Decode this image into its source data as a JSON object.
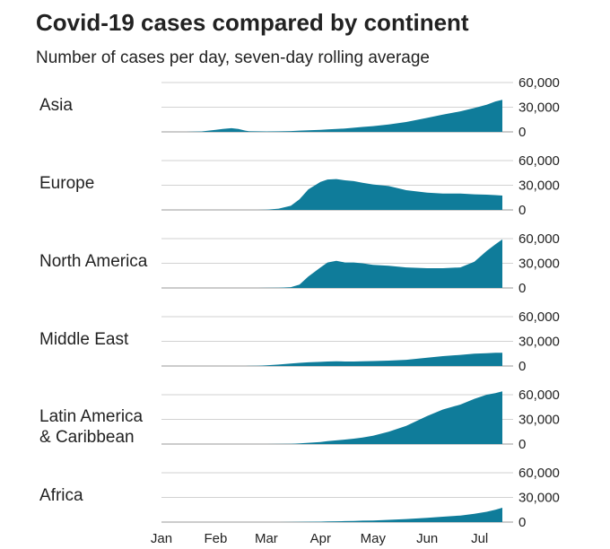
{
  "title": "Covid-19 cases compared by continent",
  "subtitle": "Number of cases per day, seven-day rolling average",
  "chart_data": {
    "type": "area",
    "x_ticks": [
      "Jan",
      "Feb",
      "Mar",
      "Apr",
      "May",
      "Jun",
      "Jul"
    ],
    "y_ticks": [
      "60,000",
      "30,000",
      "0"
    ],
    "ylim": [
      0,
      60000
    ],
    "grid": true,
    "fill_color": "#0f7c9a",
    "x": [
      "2020-01-01",
      "2020-01-15",
      "2020-01-24",
      "2020-02-01",
      "2020-02-05",
      "2020-02-10",
      "2020-02-14",
      "2020-02-18",
      "2020-02-20",
      "2020-02-25",
      "2020-03-01",
      "2020-03-08",
      "2020-03-15",
      "2020-03-20",
      "2020-03-25",
      "2020-04-01",
      "2020-04-05",
      "2020-04-10",
      "2020-04-15",
      "2020-04-20",
      "2020-04-25",
      "2020-05-01",
      "2020-05-10",
      "2020-05-20",
      "2020-06-01",
      "2020-06-10",
      "2020-06-20",
      "2020-06-28",
      "2020-07-05",
      "2020-07-10",
      "2020-07-14"
    ],
    "series": [
      {
        "name": "Asia",
        "values": [
          0,
          0,
          500,
          2500,
          3500,
          4500,
          3500,
          1500,
          800,
          600,
          500,
          700,
          1000,
          1500,
          2000,
          2500,
          3000,
          3500,
          4000,
          5000,
          6000,
          7000,
          9000,
          12000,
          17000,
          21000,
          25000,
          29000,
          33000,
          37000,
          39000
        ]
      },
      {
        "name": "Europe",
        "values": [
          0,
          0,
          0,
          0,
          0,
          0,
          0,
          0,
          0,
          0,
          300,
          1500,
          5000,
          13000,
          25000,
          34000,
          37000,
          37500,
          36000,
          35000,
          33000,
          31000,
          29000,
          24000,
          21000,
          20000,
          20000,
          19000,
          18500,
          18000,
          17500
        ]
      },
      {
        "name": "North America",
        "values": [
          0,
          0,
          0,
          0,
          0,
          0,
          0,
          0,
          0,
          0,
          100,
          300,
          1000,
          4000,
          14000,
          25000,
          31000,
          33000,
          31000,
          31000,
          30000,
          28000,
          27000,
          25000,
          24000,
          24000,
          25000,
          32000,
          45000,
          53000,
          59000
        ]
      },
      {
        "name": "Middle East",
        "values": [
          0,
          0,
          0,
          0,
          0,
          0,
          0,
          0,
          100,
          300,
          800,
          1800,
          3000,
          3800,
          4500,
          5000,
          5500,
          5800,
          5500,
          5500,
          5800,
          6000,
          6500,
          7500,
          10000,
          12000,
          13500,
          15000,
          15500,
          16000,
          16000
        ]
      },
      {
        "name": "Latin America\n& Caribbean",
        "values": [
          0,
          0,
          0,
          0,
          0,
          0,
          0,
          0,
          0,
          0,
          0,
          100,
          300,
          800,
          1500,
          2500,
          3500,
          4500,
          5500,
          6500,
          8000,
          10000,
          15000,
          22000,
          34000,
          42000,
          48000,
          55000,
          60000,
          62000,
          64000
        ]
      },
      {
        "name": "Africa",
        "values": [
          0,
          0,
          0,
          0,
          0,
          0,
          0,
          0,
          0,
          0,
          0,
          50,
          100,
          200,
          400,
          600,
          800,
          1000,
          1200,
          1400,
          1700,
          2000,
          2700,
          3700,
          5200,
          6500,
          8000,
          10000,
          12500,
          15000,
          17500
        ]
      }
    ]
  }
}
